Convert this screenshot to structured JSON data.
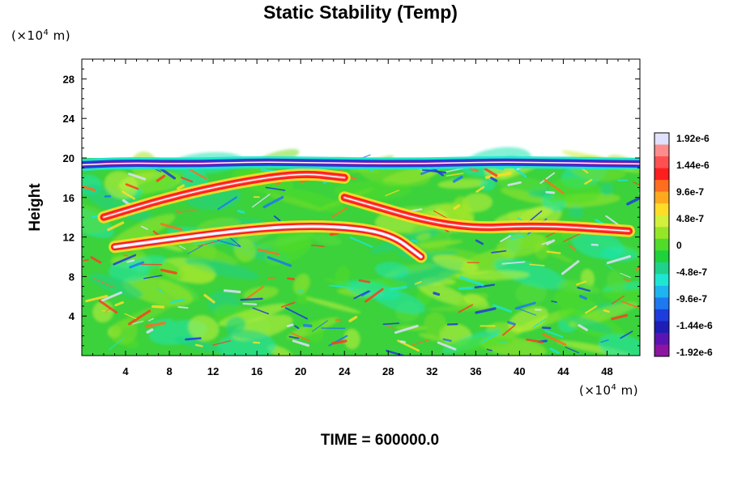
{
  "chart_data": {
    "type": "heatmap",
    "title": "Static Stability (Temp)",
    "ylabel": "Height",
    "x_unit_label": "(×10",
    "x_unit_exponent": "4",
    "x_unit_suffix": "m)",
    "y_unit_label": "(×10",
    "y_unit_exponent": "4",
    "y_unit_suffix": "m)",
    "xlim": [
      0,
      51
    ],
    "ylim": [
      0,
      30
    ],
    "x_ticks": [
      4,
      8,
      12,
      16,
      20,
      24,
      28,
      32,
      36,
      40,
      44,
      48
    ],
    "y_ticks": [
      4,
      8,
      12,
      16,
      20,
      24,
      28
    ],
    "data_top": 20,
    "colorbar": {
      "labels": [
        "1.92e-6",
        "1.44e-6",
        "9.6e-7",
        "4.8e-7",
        "0",
        "-4.8e-7",
        "-9.6e-7",
        "-1.44e-6",
        "-1.92e-6"
      ],
      "colors": [
        "#e0e0ff",
        "#ff8c8c",
        "#ff5050",
        "#ff1e1e",
        "#ff6e1e",
        "#ffaa1e",
        "#ffdc28",
        "#d2f03c",
        "#96e628",
        "#50dc28",
        "#1ed23c",
        "#1ed28c",
        "#1ee6d2",
        "#1eb4f0",
        "#1e78f0",
        "#1e3cdc",
        "#1e1eb4",
        "#5a14b4",
        "#8c14a0"
      ]
    },
    "bands": [
      {
        "x": [
          3,
          15,
          22,
          28,
          31
        ],
        "y": [
          11,
          12.8,
          13.2,
          12.5,
          10
        ],
        "value": "1.92e-6"
      },
      {
        "x": [
          24,
          34,
          42,
          50
        ],
        "y": [
          16,
          12.8,
          13.2,
          12.6
        ],
        "value": "1.44e-6"
      },
      {
        "x": [
          2,
          8,
          14,
          20,
          24
        ],
        "y": [
          14,
          16,
          17.5,
          18.5,
          18
        ],
        "value": "1.44e-6"
      },
      {
        "x": [
          0,
          4,
          10,
          16,
          22,
          30,
          38,
          44,
          51
        ],
        "y": [
          19.3,
          19.5,
          19.4,
          19.6,
          19.5,
          19.4,
          19.6,
          19.5,
          19.4
        ],
        "value": "-1.92e-6"
      }
    ]
  },
  "footer": {
    "time_label": "TIME = 600000.0"
  }
}
